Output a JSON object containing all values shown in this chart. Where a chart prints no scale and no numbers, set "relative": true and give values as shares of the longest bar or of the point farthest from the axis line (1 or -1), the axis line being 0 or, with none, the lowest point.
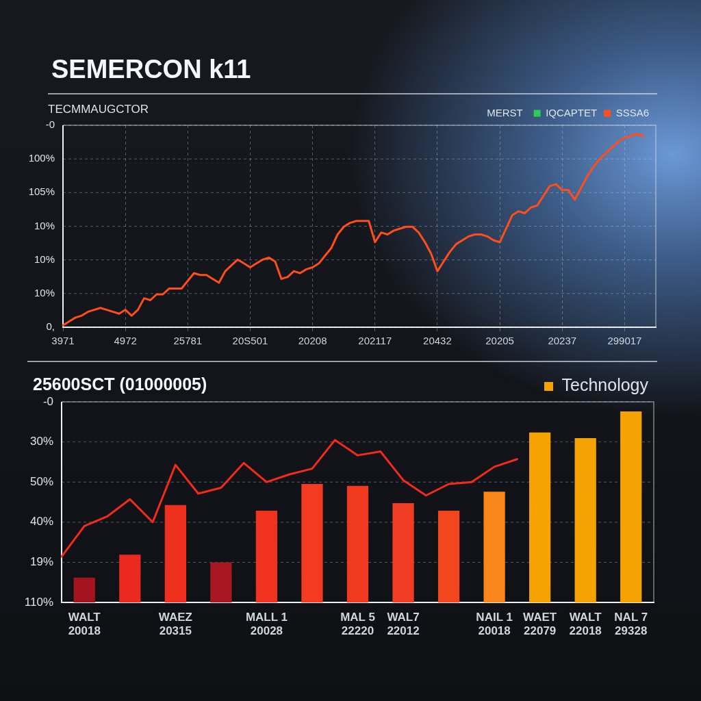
{
  "chart_data": [
    {
      "type": "line",
      "title": "SEMERCON k11",
      "subtitle": "TECMMAUGCTOR",
      "legend_title": "MERST",
      "legend": "top right",
      "relative": true,
      "annotations": [
        "-0",
        "100%",
        "105%",
        "10%",
        "10%",
        "10%",
        "0,"
      ],
      "categories": [
        "3971",
        null,
        null,
        null,
        null,
        null,
        null,
        null,
        null,
        null,
        "4972",
        null,
        null,
        null,
        null,
        null,
        null,
        null,
        null,
        null,
        "25781",
        null,
        null,
        null,
        null,
        null,
        null,
        null,
        null,
        null,
        "20S501",
        null,
        null,
        null,
        null,
        null,
        null,
        null,
        null,
        null,
        "20208",
        null,
        null,
        null,
        null,
        null,
        null,
        null,
        null,
        null,
        "202117",
        null,
        null,
        null,
        null,
        null,
        null,
        null,
        null,
        null,
        "20432",
        null,
        null,
        null,
        null,
        null,
        null,
        null,
        null,
        null,
        "20205",
        null,
        null,
        null,
        null,
        null,
        null,
        null,
        null,
        null,
        "20237",
        null,
        null,
        null,
        null,
        null,
        null,
        null,
        null,
        null,
        "299017",
        null,
        null,
        null,
        null,
        null
      ],
      "grid": true,
      "marker": "none",
      "line_style": "solid",
      "series": [
        {
          "name": "IQCAPTET",
          "color": "#2ecc55",
          "values": [
            null,
            null,
            null,
            null,
            null,
            null,
            null,
            null,
            null,
            null,
            null,
            null,
            null,
            null,
            null,
            null,
            null,
            null,
            null,
            null,
            null,
            null,
            null,
            null,
            null,
            null,
            null,
            null,
            null,
            null,
            null,
            null,
            null,
            null,
            null,
            null,
            null,
            null,
            null,
            null,
            null,
            null,
            null,
            null,
            null,
            null,
            null,
            null,
            null,
            null,
            null,
            null,
            null,
            null,
            null,
            null,
            null,
            null,
            null,
            null,
            null,
            null,
            null,
            null,
            null,
            null,
            null,
            null,
            null,
            null,
            null,
            null,
            null,
            null,
            null,
            null,
            null,
            null,
            null,
            null,
            null,
            null,
            null,
            null,
            null,
            null,
            null,
            null,
            null,
            null,
            null,
            null,
            null,
            null,
            null,
            null
          ]
        },
        {
          "name": "SSSA6",
          "color": "#ff4d1c",
          "values": [
            0.01,
            0.03,
            0.05,
            0.06,
            0.08,
            0.09,
            0.1,
            0.09,
            0.08,
            0.07,
            0.09,
            0.06,
            0.09,
            0.15,
            0.14,
            0.17,
            0.17,
            0.2,
            0.2,
            0.2,
            0.24,
            0.28,
            0.27,
            0.27,
            0.25,
            0.23,
            0.29,
            0.32,
            0.35,
            0.33,
            0.31,
            0.33,
            0.35,
            0.36,
            0.34,
            0.25,
            0.26,
            0.29,
            0.28,
            0.3,
            0.31,
            0.33,
            0.37,
            0.41,
            0.48,
            0.52,
            0.54,
            0.55,
            0.55,
            0.55,
            0.44,
            0.49,
            0.48,
            0.5,
            0.51,
            0.52,
            0.52,
            0.49,
            0.44,
            0.38,
            0.29,
            0.34,
            0.39,
            0.43,
            0.45,
            0.47,
            0.48,
            0.48,
            0.47,
            0.45,
            0.44,
            0.51,
            0.58,
            0.6,
            0.59,
            0.62,
            0.63,
            0.68,
            0.73,
            0.74,
            0.71,
            0.71,
            0.66,
            0.72,
            0.78,
            0.83,
            0.87,
            0.9,
            0.93,
            0.96,
            0.98,
            0.99,
            1,
            0.99,
            null,
            null
          ]
        }
      ]
    },
    {
      "type": "bar",
      "title": "25600SCT (01000005)",
      "legend": "top right",
      "relative": true,
      "annotations": [
        "-0",
        "30%",
        "50%",
        "40%",
        "19%",
        "110%"
      ],
      "categories": [
        null,
        "WALT\n20018",
        null,
        null,
        null,
        "WAEZ\n20315",
        null,
        null,
        null,
        "MALL 1\n20028",
        null,
        null,
        null,
        "MAL 5\n22220",
        null,
        "WAL7\n22012",
        null,
        null,
        null,
        "NAIL 1\n20018",
        null,
        "WAET\n22079",
        null,
        "WALT\n22018",
        null,
        "NAL 7\n29328",
        null
      ],
      "grid": "y",
      "marker": "none",
      "line_style": "solid",
      "series": [
        {
          "name": "Technology",
          "color": "#f5a300",
          "colors": [
            null,
            "#a3141f",
            null,
            "#ea2a1e",
            null,
            "#f0301e",
            null,
            "#a81822",
            null,
            "#f0321e",
            null,
            "#f43a20",
            null,
            "#f23a20",
            null,
            "#f03c22",
            null,
            "#f2461e",
            null,
            "#f8861a",
            null,
            "#f5a300",
            null,
            "#f5a300",
            null,
            "#f5a300",
            null
          ],
          "values": [
            null,
            0.13,
            null,
            0.25,
            null,
            0.51,
            null,
            0.21,
            null,
            0.48,
            null,
            0.62,
            null,
            0.61,
            null,
            0.52,
            null,
            0.48,
            null,
            0.58,
            null,
            0.89,
            null,
            0.86,
            null,
            1,
            null
          ]
        },
        {
          "type": "line",
          "color": "#f42a1a",
          "values": [
            0.24,
            0.4,
            0.45,
            0.54,
            0.42,
            0.72,
            0.57,
            0.6,
            0.73,
            0.63,
            0.67,
            0.7,
            0.85,
            0.77,
            0.79,
            0.64,
            0.56,
            0.62,
            0.63,
            0.71,
            0.75,
            null,
            null,
            null,
            null,
            null,
            null
          ]
        }
      ]
    }
  ]
}
